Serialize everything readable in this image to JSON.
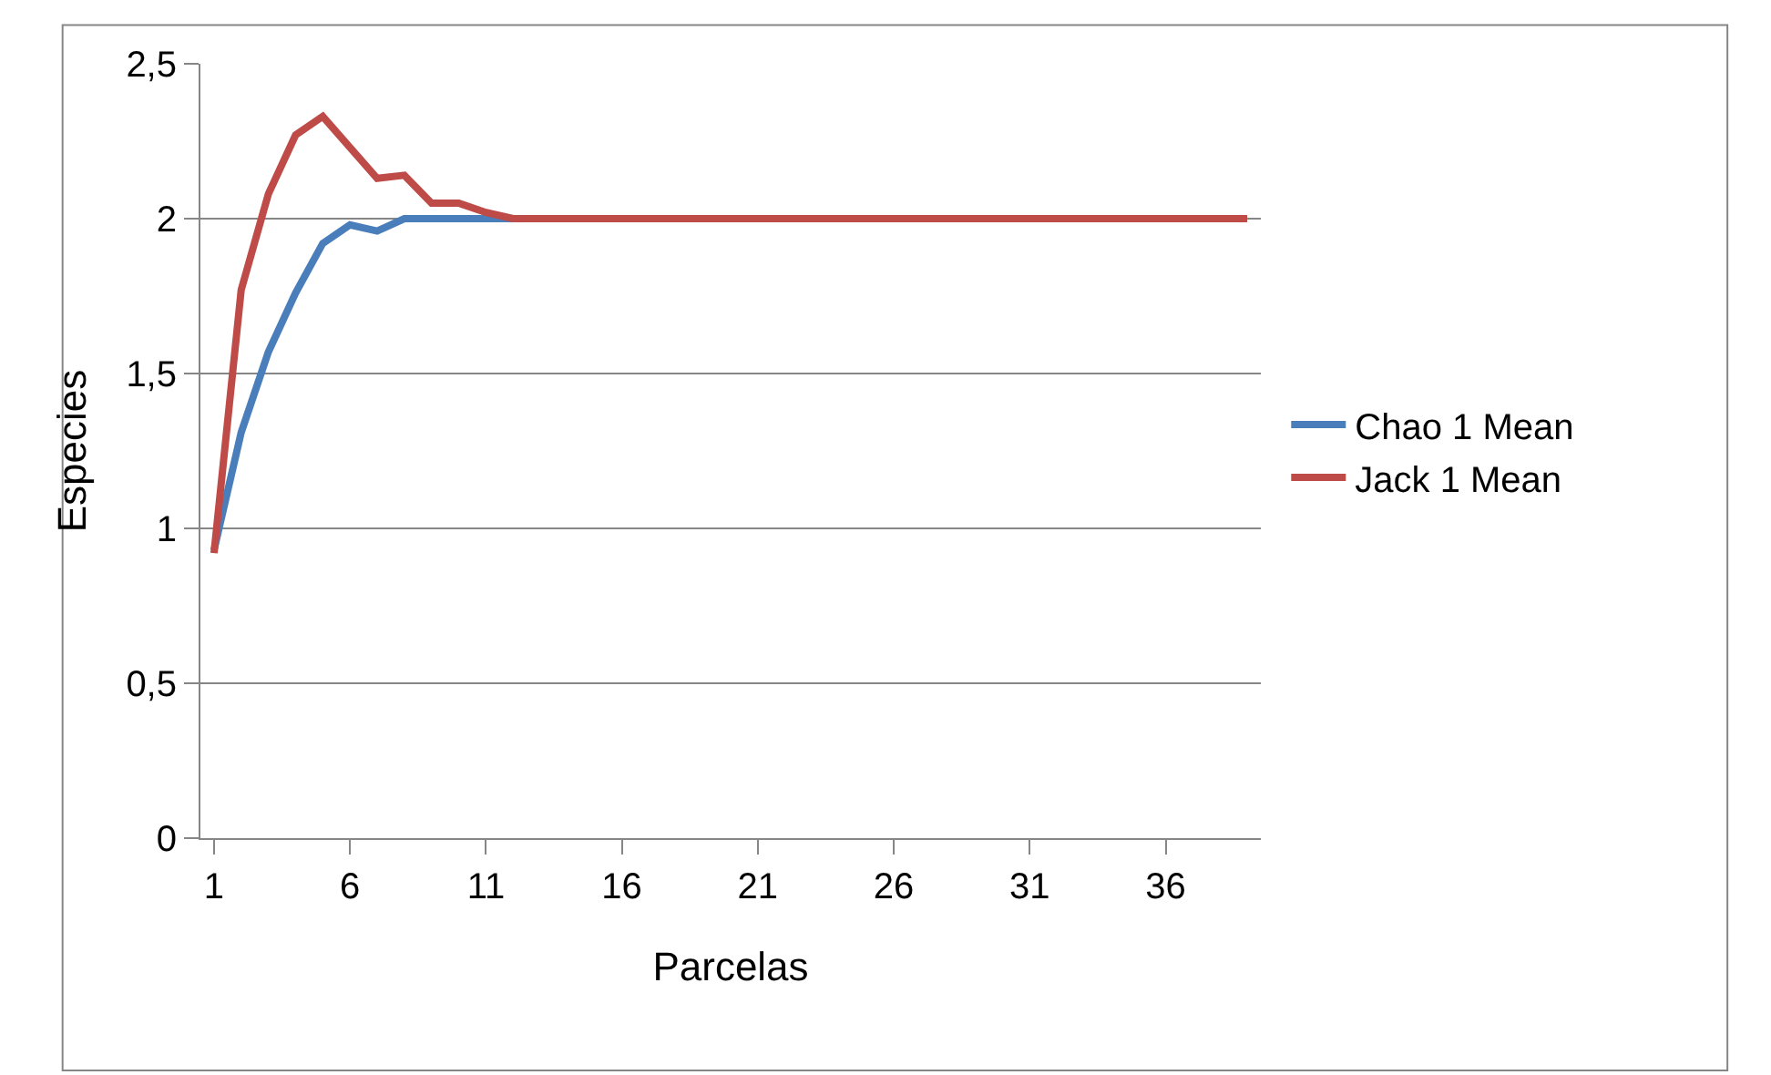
{
  "chart_data": {
    "type": "line",
    "xlabel": "Parcelas",
    "ylabel": "Especies",
    "x": [
      1,
      2,
      3,
      4,
      5,
      6,
      7,
      8,
      9,
      10,
      11,
      12,
      13,
      14,
      15,
      16,
      17,
      18,
      19,
      20,
      21,
      22,
      23,
      24,
      25,
      26,
      27,
      28,
      29,
      30,
      31,
      32,
      33,
      34,
      35,
      36,
      37,
      38,
      39
    ],
    "series": [
      {
        "name": "Chao 1 Mean",
        "color": "#4a7ebb",
        "values": [
          0.93,
          1.31,
          1.57,
          1.76,
          1.92,
          1.98,
          1.96,
          2.0,
          2.0,
          2.0,
          2.0,
          2.0,
          null,
          null,
          null,
          null,
          null,
          null,
          null,
          null,
          null,
          null,
          null,
          null,
          null,
          null,
          null,
          null,
          null,
          null,
          null,
          null,
          null,
          null,
          null,
          null,
          null,
          null,
          null
        ]
      },
      {
        "name": "Jack 1 Mean",
        "color": "#be4b48",
        "values": [
          0.92,
          1.77,
          2.08,
          2.27,
          2.33,
          2.23,
          2.13,
          2.14,
          2.05,
          2.05,
          2.02,
          2.0,
          2.0,
          2.0,
          2.0,
          2.0,
          2.0,
          2.0,
          2.0,
          2.0,
          2.0,
          2.0,
          2.0,
          2.0,
          2.0,
          2.0,
          2.0,
          2.0,
          2.0,
          2.0,
          2.0,
          2.0,
          2.0,
          2.0,
          2.0,
          2.0,
          2.0,
          2.0,
          2.0
        ]
      }
    ],
    "xlim": [
      0.5,
      39.5
    ],
    "xticks": [
      1,
      6,
      11,
      16,
      21,
      26,
      31,
      36
    ],
    "ylim": [
      0,
      2.5
    ],
    "yticks": [
      0,
      {
        "value": 0.5,
        "label": "0,5"
      },
      1,
      {
        "value": 1.5,
        "label": "1,5"
      },
      2,
      {
        "value": 2.5,
        "label": "2,5"
      }
    ],
    "grid": "y",
    "legend": "right",
    "marker": "none",
    "line_style": "solid"
  }
}
